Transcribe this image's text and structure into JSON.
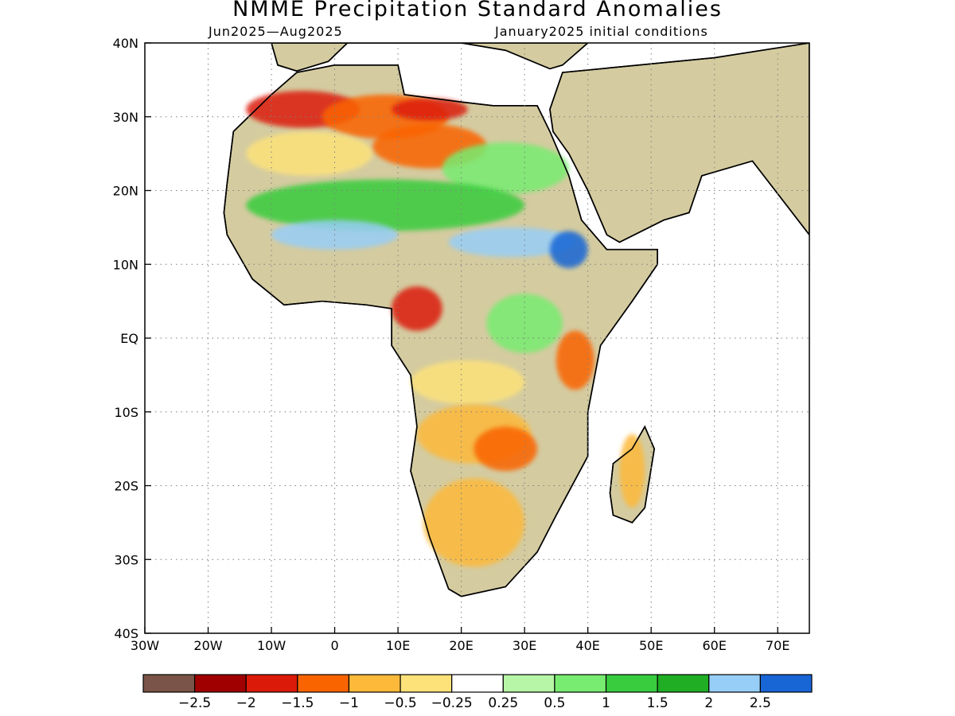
{
  "header": {
    "title": "NMME Precipitation Standard Anomalies",
    "period": "Jun2025—Aug2025",
    "initial_conditions": "January2025 initial conditions"
  },
  "axes": {
    "y_ticks": [
      "40N",
      "30N",
      "20N",
      "10N",
      "EQ",
      "10S",
      "20S",
      "30S",
      "40S"
    ],
    "y_values": [
      40,
      30,
      20,
      10,
      0,
      -10,
      -20,
      -30,
      -40
    ],
    "x_ticks": [
      "30W",
      "20W",
      "10W",
      "0",
      "10E",
      "20E",
      "30E",
      "40E",
      "50E",
      "60E",
      "70E"
    ],
    "x_values": [
      -30,
      -20,
      -10,
      0,
      10,
      20,
      30,
      40,
      50,
      60,
      70
    ],
    "lon_range": [
      -30,
      75
    ],
    "lat_range": [
      -40,
      40
    ],
    "grid": "dotted"
  },
  "colorbar": {
    "colors": [
      "#7a5448",
      "#a00000",
      "#dc1a0a",
      "#fa6400",
      "#fdb93a",
      "#fde27a",
      "#ffffff",
      "#b7f6a6",
      "#77ec70",
      "#38cc3e",
      "#1fae24",
      "#97cef7",
      "#1866d6"
    ],
    "labels": [
      "−2.5",
      "−2",
      "−1.5",
      "−1",
      "−0.5",
      "−0.25",
      "0.25",
      "0.5",
      "1",
      "1.5",
      "2",
      "2.5"
    ]
  },
  "map_data": {
    "continent": "#d4cba0",
    "anomaly_regions": [
      {
        "lon": -5,
        "lat": 31,
        "rx": 9,
        "ry": 2.5,
        "color": "#dc1a0a"
      },
      {
        "lon": 8,
        "lat": 30,
        "rx": 10,
        "ry": 3,
        "color": "#fa6400"
      },
      {
        "lon": 15,
        "lat": 31,
        "rx": 6,
        "ry": 1.5,
        "color": "#dc1a0a"
      },
      {
        "lon": -4,
        "lat": 25,
        "rx": 10,
        "ry": 3,
        "color": "#fde27a"
      },
      {
        "lon": 15,
        "lat": 26,
        "rx": 9,
        "ry": 3,
        "color": "#fa6400"
      },
      {
        "lon": 27,
        "lat": 23,
        "rx": 10,
        "ry": 3.5,
        "color": "#77ec70"
      },
      {
        "lon": 8,
        "lat": 18,
        "rx": 22,
        "ry": 3.5,
        "color": "#38cc3e"
      },
      {
        "lon": 0,
        "lat": 14,
        "rx": 10,
        "ry": 2,
        "color": "#97cef7"
      },
      {
        "lon": 28,
        "lat": 13,
        "rx": 10,
        "ry": 2,
        "color": "#97cef7"
      },
      {
        "lon": 37,
        "lat": 12,
        "rx": 3,
        "ry": 2.5,
        "color": "#1866d6"
      },
      {
        "lon": 13,
        "lat": 4,
        "rx": 4,
        "ry": 3,
        "color": "#dc1a0a"
      },
      {
        "lon": 30,
        "lat": 2,
        "rx": 6,
        "ry": 4,
        "color": "#77ec70"
      },
      {
        "lon": 21,
        "lat": -6,
        "rx": 9,
        "ry": 3,
        "color": "#fde27a"
      },
      {
        "lon": 38,
        "lat": -3,
        "rx": 3,
        "ry": 4,
        "color": "#fa6400"
      },
      {
        "lon": 22,
        "lat": -13,
        "rx": 9,
        "ry": 4,
        "color": "#fdb93a"
      },
      {
        "lon": 27,
        "lat": -15,
        "rx": 5,
        "ry": 3,
        "color": "#fa6400"
      },
      {
        "lon": 22,
        "lat": -25,
        "rx": 8,
        "ry": 6,
        "color": "#fdb93a"
      },
      {
        "lon": 47,
        "lat": -18,
        "rx": 2,
        "ry": 5,
        "color": "#fdb93a"
      }
    ]
  }
}
